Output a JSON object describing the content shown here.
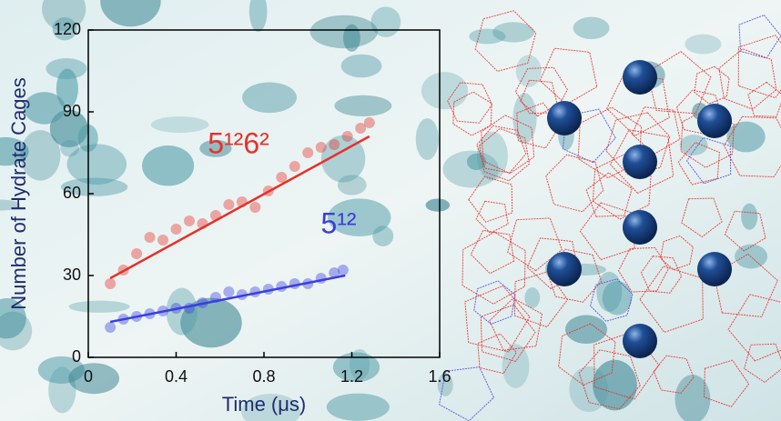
{
  "chart_data": {
    "type": "scatter",
    "xlabel": "Time (μs)",
    "ylabel": "Number of Hydrate Cages",
    "xlim": [
      0,
      1.6
    ],
    "xticks": [
      0,
      0.4,
      0.8,
      1.2,
      1.6
    ],
    "ylim": [
      0,
      120
    ],
    "yticks": [
      0,
      30,
      60,
      90,
      120
    ],
    "series": [
      {
        "name": "5¹²6²",
        "color": "#e8302a",
        "x": [
          0.1,
          0.16,
          0.22,
          0.28,
          0.34,
          0.4,
          0.46,
          0.52,
          0.58,
          0.64,
          0.7,
          0.76,
          0.82,
          0.88,
          0.94,
          1.0,
          1.06,
          1.12,
          1.18,
          1.24,
          1.28
        ],
        "values": [
          27,
          32,
          38,
          44,
          43,
          47,
          50,
          49,
          52,
          56,
          57,
          55,
          61,
          66,
          70,
          75,
          77,
          78,
          81,
          84,
          86
        ],
        "fit_x": [
          0.1,
          1.28
        ],
        "fit_values": [
          29,
          81
        ]
      },
      {
        "name": "5¹²",
        "color": "#3a3ee0",
        "x": [
          0.1,
          0.16,
          0.22,
          0.28,
          0.34,
          0.4,
          0.46,
          0.52,
          0.58,
          0.64,
          0.7,
          0.76,
          0.82,
          0.88,
          0.94,
          1.0,
          1.06,
          1.12,
          1.16
        ],
        "values": [
          11,
          14,
          15,
          16,
          17,
          18,
          18,
          20,
          22,
          24,
          23,
          24,
          25,
          26,
          27,
          27,
          29,
          31,
          32
        ],
        "fit_x": [
          0.1,
          1.17
        ],
        "fit_values": [
          13,
          30
        ]
      }
    ]
  }
}
